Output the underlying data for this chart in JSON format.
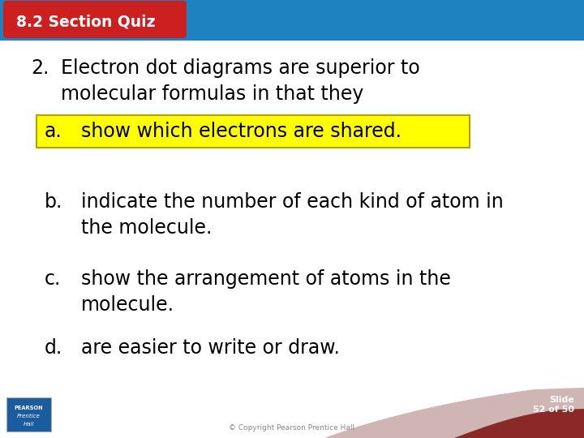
{
  "title": "8.2 Section Quiz",
  "title_bg_color": "#cc2020",
  "title_text_color": "#ffffff",
  "header_bg_color": "#1e82c0",
  "slide_bg_color": "#ffffff",
  "question_num": "2.",
  "question_text1": "Electron dot diagrams are superior to",
  "question_text2": "molecular formulas in that they",
  "question_color": "#000000",
  "options": [
    {
      "label": "a.",
      "text1": "show which electrons are shared.",
      "text2": "",
      "highlighted": true
    },
    {
      "label": "b.",
      "text1": "indicate the number of each kind of atom in",
      "text2": "the molecule.",
      "highlighted": false
    },
    {
      "label": "c.",
      "text1": "show the arrangement of atoms in the",
      "text2": "molecule.",
      "highlighted": false
    },
    {
      "label": "d.",
      "text1": "are easier to write or draw.",
      "text2": "",
      "highlighted": false
    }
  ],
  "highlight_color": "#ffff00",
  "highlight_border_color": "#b8a000",
  "option_text_color": "#000000",
  "footer_text": "© Copyright Pearson Prentice Hall",
  "slide_label_line1": "Slide",
  "slide_label_line2": "52 of 50",
  "slide_label_color": "#ffffff",
  "footer_color": "#888888",
  "curve_light_color": "#c8a8a8",
  "curve_dark_color": "#8b2828"
}
